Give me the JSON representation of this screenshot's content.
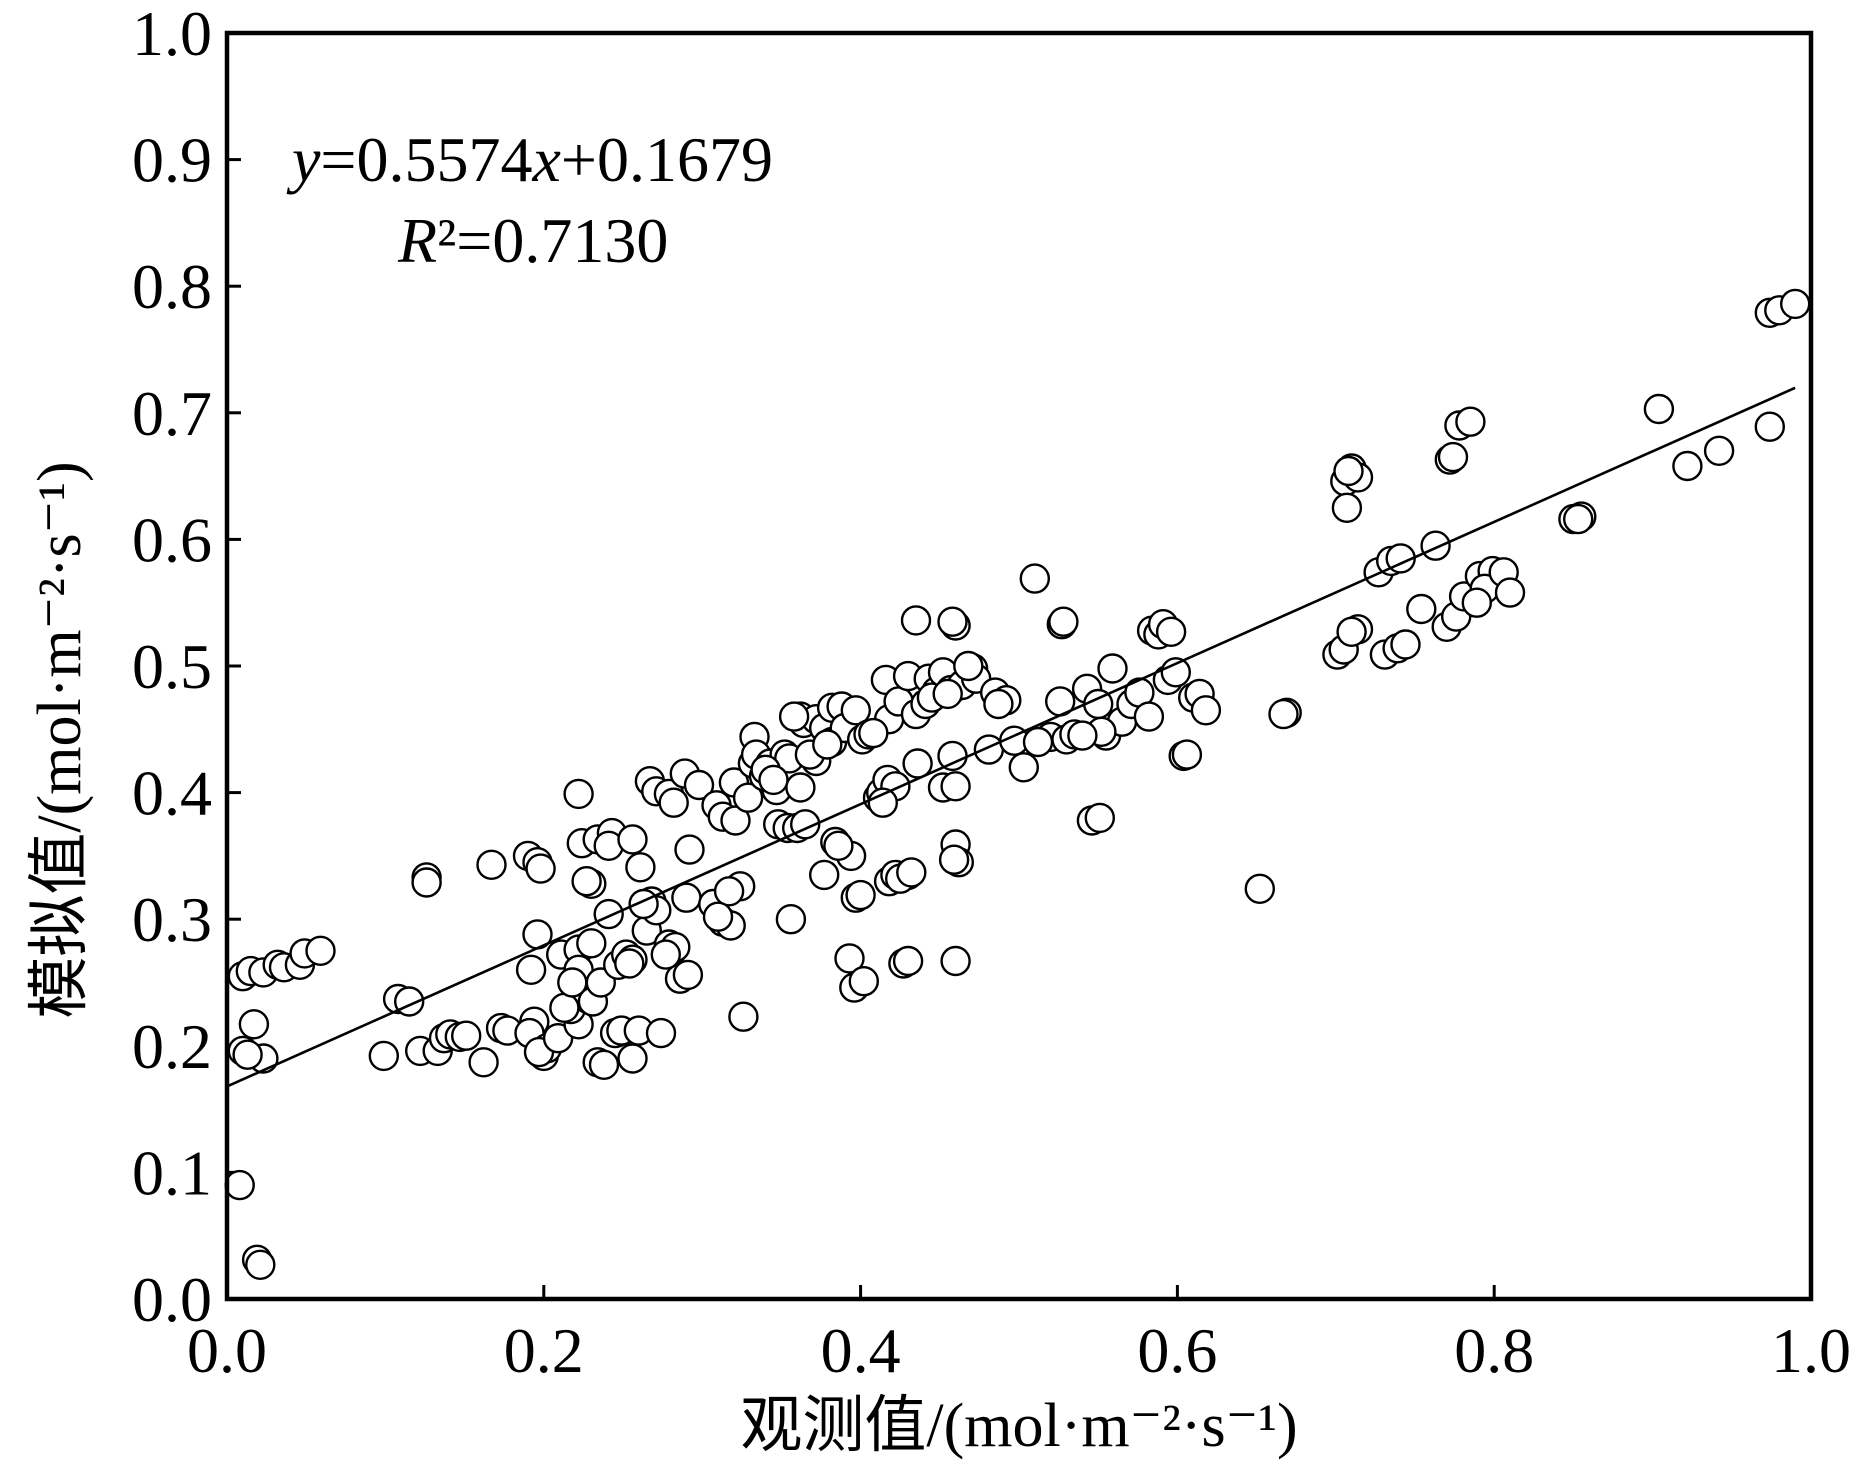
{
  "chart_data": {
    "type": "scatter",
    "xlabel": "观测值/(mol·m⁻²·s⁻¹)",
    "ylabel": "模拟值/(mol·m⁻²·s⁻¹)",
    "xlim": [
      0,
      1
    ],
    "ylim": [
      0,
      1
    ],
    "x_ticks": [
      "0.0",
      "0.2",
      "0.4",
      "0.6",
      "0.8",
      "1.0"
    ],
    "y_ticks": [
      "0.0",
      "0.1",
      "0.2",
      "0.3",
      "0.4",
      "0.5",
      "0.6",
      "0.7",
      "0.8",
      "0.9",
      "1.0"
    ],
    "annotations": [
      "y=0.5574x+0.1679",
      "R²=0.7130"
    ],
    "fit_line": {
      "slope": 0.5574,
      "intercept": 0.1679,
      "x_range": [
        0,
        0.99
      ]
    },
    "grid": false,
    "legend": "none",
    "marker": {
      "shape": "circle",
      "fill": "#ffffff",
      "edge": "#000000"
    },
    "line_color": "#000000",
    "points": [
      [
        0.008,
        0.09
      ],
      [
        0.019,
        0.031
      ],
      [
        0.021,
        0.027
      ],
      [
        0.01,
        0.255
      ],
      [
        0.015,
        0.259
      ],
      [
        0.023,
        0.258
      ],
      [
        0.032,
        0.264
      ],
      [
        0.036,
        0.262
      ],
      [
        0.046,
        0.264
      ],
      [
        0.049,
        0.273
      ],
      [
        0.059,
        0.275
      ],
      [
        0.017,
        0.217
      ],
      [
        0.01,
        0.196
      ],
      [
        0.023,
        0.19
      ],
      [
        0.013,
        0.193
      ],
      [
        0.099,
        0.192
      ],
      [
        0.108,
        0.237
      ],
      [
        0.115,
        0.235
      ],
      [
        0.126,
        0.333
      ],
      [
        0.126,
        0.329
      ],
      [
        0.122,
        0.196
      ],
      [
        0.133,
        0.196
      ],
      [
        0.137,
        0.206
      ],
      [
        0.141,
        0.209
      ],
      [
        0.147,
        0.207
      ],
      [
        0.151,
        0.208
      ],
      [
        0.162,
        0.187
      ],
      [
        0.167,
        0.343
      ],
      [
        0.173,
        0.214
      ],
      [
        0.177,
        0.212
      ],
      [
        0.19,
        0.35
      ],
      [
        0.196,
        0.345
      ],
      [
        0.198,
        0.34
      ],
      [
        0.192,
        0.26
      ],
      [
        0.196,
        0.288
      ],
      [
        0.194,
        0.219
      ],
      [
        0.191,
        0.21
      ],
      [
        0.2,
        0.192
      ],
      [
        0.202,
        0.198
      ],
      [
        0.197,
        0.195
      ],
      [
        0.211,
        0.272
      ],
      [
        0.209,
        0.206
      ],
      [
        0.222,
        0.399
      ],
      [
        0.224,
        0.36
      ],
      [
        0.222,
        0.276
      ],
      [
        0.222,
        0.26
      ],
      [
        0.221,
        0.232
      ],
      [
        0.222,
        0.217
      ],
      [
        0.217,
        0.229
      ],
      [
        0.228,
        0.237
      ],
      [
        0.23,
        0.328
      ],
      [
        0.234,
        0.363
      ],
      [
        0.23,
        0.281
      ],
      [
        0.231,
        0.235
      ],
      [
        0.236,
        0.25
      ],
      [
        0.234,
        0.187
      ],
      [
        0.238,
        0.185
      ],
      [
        0.243,
        0.368
      ],
      [
        0.241,
        0.358
      ],
      [
        0.241,
        0.304
      ],
      [
        0.247,
        0.264
      ],
      [
        0.245,
        0.21
      ],
      [
        0.249,
        0.212
      ],
      [
        0.227,
        0.33
      ],
      [
        0.213,
        0.23
      ],
      [
        0.218,
        0.25
      ],
      [
        0.252,
        0.272
      ],
      [
        0.256,
        0.363
      ],
      [
        0.256,
        0.268
      ],
      [
        0.256,
        0.19
      ],
      [
        0.261,
        0.341
      ],
      [
        0.26,
        0.212
      ],
      [
        0.267,
        0.409
      ],
      [
        0.268,
        0.314
      ],
      [
        0.265,
        0.291
      ],
      [
        0.271,
        0.401
      ],
      [
        0.271,
        0.307
      ],
      [
        0.274,
        0.21
      ],
      [
        0.279,
        0.399
      ],
      [
        0.282,
        0.392
      ],
      [
        0.281,
        0.275
      ],
      [
        0.279,
        0.28
      ],
      [
        0.286,
        0.253
      ],
      [
        0.291,
        0.256
      ],
      [
        0.289,
        0.415
      ],
      [
        0.292,
        0.355
      ],
      [
        0.29,
        0.317
      ],
      [
        0.298,
        0.406
      ],
      [
        0.263,
        0.312
      ],
      [
        0.283,
        0.278
      ],
      [
        0.277,
        0.272
      ],
      [
        0.254,
        0.265
      ],
      [
        0.307,
        0.312
      ],
      [
        0.309,
        0.39
      ],
      [
        0.313,
        0.381
      ],
      [
        0.313,
        0.298
      ],
      [
        0.318,
        0.295
      ],
      [
        0.32,
        0.408
      ],
      [
        0.321,
        0.378
      ],
      [
        0.324,
        0.326
      ],
      [
        0.326,
        0.223
      ],
      [
        0.329,
        0.396
      ],
      [
        0.332,
        0.423
      ],
      [
        0.333,
        0.444
      ],
      [
        0.334,
        0.43
      ],
      [
        0.339,
        0.413
      ],
      [
        0.343,
        0.423
      ],
      [
        0.347,
        0.402
      ],
      [
        0.348,
        0.375
      ],
      [
        0.352,
        0.43
      ],
      [
        0.354,
        0.372
      ],
      [
        0.355,
        0.427
      ],
      [
        0.356,
        0.3
      ],
      [
        0.317,
        0.322
      ],
      [
        0.34,
        0.418
      ],
      [
        0.345,
        0.41
      ],
      [
        0.31,
        0.302
      ],
      [
        0.362,
        0.46
      ],
      [
        0.364,
        0.455
      ],
      [
        0.362,
        0.404
      ],
      [
        0.36,
        0.372
      ],
      [
        0.365,
        0.375
      ],
      [
        0.372,
        0.458
      ],
      [
        0.372,
        0.425
      ],
      [
        0.377,
        0.451
      ],
      [
        0.382,
        0.467
      ],
      [
        0.382,
        0.44
      ],
      [
        0.377,
        0.335
      ],
      [
        0.388,
        0.468
      ],
      [
        0.384,
        0.361
      ],
      [
        0.39,
        0.451
      ],
      [
        0.394,
        0.35
      ],
      [
        0.393,
        0.269
      ],
      [
        0.396,
        0.246
      ],
      [
        0.397,
        0.465
      ],
      [
        0.358,
        0.46
      ],
      [
        0.368,
        0.43
      ],
      [
        0.386,
        0.358
      ],
      [
        0.379,
        0.438
      ],
      [
        0.401,
        0.442
      ],
      [
        0.397,
        0.317
      ],
      [
        0.4,
        0.319
      ],
      [
        0.402,
        0.251
      ],
      [
        0.405,
        0.446
      ],
      [
        0.411,
        0.396
      ],
      [
        0.413,
        0.4
      ],
      [
        0.416,
        0.489
      ],
      [
        0.417,
        0.41
      ],
      [
        0.418,
        0.458
      ],
      [
        0.418,
        0.33
      ],
      [
        0.422,
        0.335
      ],
      [
        0.422,
        0.405
      ],
      [
        0.424,
        0.472
      ],
      [
        0.43,
        0.492
      ],
      [
        0.427,
        0.265
      ],
      [
        0.43,
        0.267
      ],
      [
        0.43,
        0.335
      ],
      [
        0.435,
        0.462
      ],
      [
        0.435,
        0.536
      ],
      [
        0.436,
        0.423
      ],
      [
        0.441,
        0.47
      ],
      [
        0.443,
        0.49
      ],
      [
        0.448,
        0.48
      ],
      [
        0.408,
        0.447
      ],
      [
        0.425,
        0.332
      ],
      [
        0.432,
        0.337
      ],
      [
        0.414,
        0.392
      ],
      [
        0.445,
        0.475
      ],
      [
        0.452,
        0.495
      ],
      [
        0.452,
        0.404
      ],
      [
        0.457,
        0.481
      ],
      [
        0.46,
        0.532
      ],
      [
        0.458,
        0.429
      ],
      [
        0.46,
        0.359
      ],
      [
        0.462,
        0.345
      ],
      [
        0.46,
        0.267
      ],
      [
        0.46,
        0.405
      ],
      [
        0.464,
        0.485
      ],
      [
        0.471,
        0.498
      ],
      [
        0.473,
        0.49
      ],
      [
        0.481,
        0.434
      ],
      [
        0.485,
        0.479
      ],
      [
        0.492,
        0.473
      ],
      [
        0.497,
        0.441
      ],
      [
        0.503,
        0.42
      ],
      [
        0.458,
        0.535
      ],
      [
        0.459,
        0.347
      ],
      [
        0.455,
        0.478
      ],
      [
        0.468,
        0.5
      ],
      [
        0.487,
        0.47
      ],
      [
        0.51,
        0.569
      ],
      [
        0.52,
        0.444
      ],
      [
        0.526,
        0.472
      ],
      [
        0.527,
        0.533
      ],
      [
        0.53,
        0.442
      ],
      [
        0.535,
        0.446
      ],
      [
        0.543,
        0.482
      ],
      [
        0.546,
        0.378
      ],
      [
        0.551,
        0.38
      ],
      [
        0.55,
        0.47
      ],
      [
        0.555,
        0.445
      ],
      [
        0.559,
        0.498
      ],
      [
        0.565,
        0.456
      ],
      [
        0.571,
        0.47
      ],
      [
        0.576,
        0.479
      ],
      [
        0.582,
        0.46
      ],
      [
        0.584,
        0.528
      ],
      [
        0.588,
        0.525
      ],
      [
        0.591,
        0.533
      ],
      [
        0.594,
        0.489
      ],
      [
        0.599,
        0.495
      ],
      [
        0.604,
        0.429
      ],
      [
        0.61,
        0.475
      ],
      [
        0.614,
        0.478
      ],
      [
        0.618,
        0.465
      ],
      [
        0.512,
        0.44
      ],
      [
        0.528,
        0.535
      ],
      [
        0.552,
        0.448
      ],
      [
        0.596,
        0.527
      ],
      [
        0.606,
        0.43
      ],
      [
        0.54,
        0.445
      ],
      [
        0.652,
        0.324
      ],
      [
        0.669,
        0.463
      ],
      [
        0.701,
        0.509
      ],
      [
        0.705,
        0.513
      ],
      [
        0.71,
        0.656
      ],
      [
        0.706,
        0.646
      ],
      [
        0.707,
        0.625
      ],
      [
        0.714,
        0.649
      ],
      [
        0.714,
        0.529
      ],
      [
        0.71,
        0.527
      ],
      [
        0.727,
        0.574
      ],
      [
        0.735,
        0.583
      ],
      [
        0.731,
        0.509
      ],
      [
        0.739,
        0.514
      ],
      [
        0.741,
        0.585
      ],
      [
        0.744,
        0.517
      ],
      [
        0.754,
        0.545
      ],
      [
        0.763,
        0.595
      ],
      [
        0.772,
        0.663
      ],
      [
        0.774,
        0.665
      ],
      [
        0.77,
        0.531
      ],
      [
        0.778,
        0.69
      ],
      [
        0.785,
        0.693
      ],
      [
        0.776,
        0.539
      ],
      [
        0.781,
        0.555
      ],
      [
        0.791,
        0.571
      ],
      [
        0.799,
        0.575
      ],
      [
        0.794,
        0.561
      ],
      [
        0.806,
        0.574
      ],
      [
        0.81,
        0.558
      ],
      [
        0.789,
        0.55
      ],
      [
        0.708,
        0.654
      ],
      [
        0.667,
        0.462
      ],
      [
        0.85,
        0.616
      ],
      [
        0.855,
        0.618
      ],
      [
        0.853,
        0.616
      ],
      [
        0.904,
        0.703
      ],
      [
        0.922,
        0.658
      ],
      [
        0.942,
        0.67
      ],
      [
        0.974,
        0.689
      ],
      [
        0.974,
        0.779
      ],
      [
        0.98,
        0.781
      ],
      [
        0.99,
        0.786
      ]
    ]
  }
}
